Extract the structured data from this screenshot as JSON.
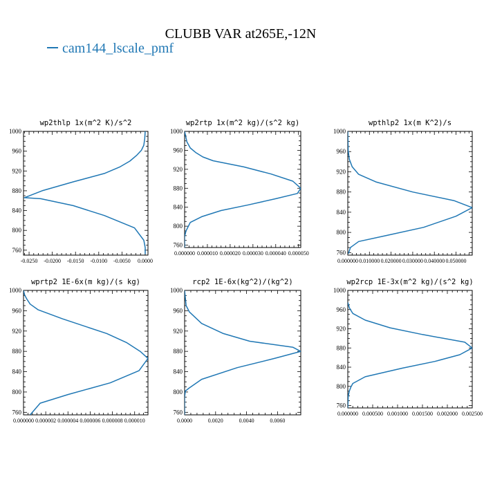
{
  "figure": {
    "title": "CLUBB VAR at265E,-12N",
    "legend": [
      {
        "label": "cam144_lscale_pmf",
        "color": "#1f77b4"
      }
    ],
    "series_color": "#1f77b4"
  },
  "chart_data": [
    {
      "type": "line",
      "title": "wp2thlp  1x(m^2 K)/s^2",
      "xlim": [
        -0.0262,
        0.0006
      ],
      "ylim": [
        1000,
        750
      ],
      "yticks": [
        760,
        800,
        840,
        880,
        920,
        960,
        1000
      ],
      "xticks": [
        -0.025,
        -0.02,
        -0.015,
        -0.01,
        -0.005,
        0.0
      ],
      "xtick_labels": [
        "-0.0250",
        "-0.0200",
        "-0.0150",
        "-0.0100",
        "-0.0050",
        "0.0000"
      ],
      "x": [
        0.0,
        0.0,
        -0.0003,
        -0.0023,
        -0.0088,
        -0.0155,
        -0.0225,
        -0.026,
        -0.0222,
        -0.0155,
        -0.0088,
        -0.0055,
        -0.0033,
        -0.0018,
        -0.0008,
        -0.0003,
        -0.0001,
        0.0
      ],
      "y": [
        752,
        765,
        780,
        805,
        830,
        850,
        864,
        866,
        880,
        898,
        915,
        928,
        940,
        952,
        962,
        972,
        985,
        1000
      ]
    },
    {
      "type": "line",
      "title": "wp2rtp  1x(m^2 kg)/(s^2 kg)",
      "xlim": [
        0,
        5.1e-05
      ],
      "ylim": [
        1000,
        755
      ],
      "yticks": [
        760,
        800,
        840,
        880,
        920,
        960,
        1000
      ],
      "xticks": [
        0,
        1e-05,
        2e-05,
        3e-05,
        4e-05,
        5e-05
      ],
      "xtick_labels": [
        "0.000000",
        "0.000010",
        "0.000020",
        "0.000030",
        "0.000040",
        "0.000050"
      ],
      "x": [
        0.0,
        0.0,
        0.0,
        6e-07,
        2.5e-06,
        7.5e-06,
        1.6e-05,
        2.8e-05,
        4e-05,
        4.95e-05,
        5.1e-05,
        4.75e-05,
        3.8e-05,
        2.6e-05,
        1.25e-05,
        8e-06,
        5e-06,
        2.5e-06,
        1e-06,
        0.0
      ],
      "y": [
        755,
        765,
        778,
        790,
        808,
        820,
        833,
        845,
        858,
        869,
        880,
        895,
        910,
        925,
        938,
        946,
        955,
        965,
        978,
        1000
      ]
    },
    {
      "type": "line",
      "title": "wpthlp2  1x(m K^2)/s",
      "xlim": [
        0,
        0.0575
      ],
      "ylim": [
        1000,
        755
      ],
      "yticks": [
        760,
        800,
        840,
        880,
        920,
        960,
        1000
      ],
      "xticks": [
        0,
        0.01,
        0.02,
        0.03,
        0.04,
        0.05
      ],
      "xtick_labels": [
        "0.000000",
        "0.010000",
        "0.020000",
        "0.030000",
        "0.040000",
        "0.050000"
      ],
      "x": [
        0.0003,
        0.0012,
        0.005,
        0.018,
        0.035,
        0.05,
        0.0575,
        0.049,
        0.03,
        0.013,
        0.005,
        0.002,
        0.0007,
        0.0002,
        0.0
      ],
      "y": [
        758,
        770,
        782,
        794,
        810,
        832,
        849,
        863,
        880,
        900,
        915,
        930,
        945,
        962,
        1000
      ]
    },
    {
      "type": "line",
      "title": "wprtp2  1E-6x(m kg)/(s kg)",
      "xlim": [
        0,
        1.12e-05
      ],
      "ylim": [
        1000,
        755
      ],
      "yticks": [
        760,
        800,
        840,
        880,
        920,
        960,
        1000
      ],
      "xticks": [
        0,
        2e-06,
        4e-06,
        6e-06,
        8e-06,
        1e-05
      ],
      "xtick_labels": [
        "0.000000",
        "0.000002",
        "0.000004",
        "0.000006",
        "0.000008",
        "0.000010"
      ],
      "x": [
        6e-07,
        1.5e-06,
        4e-06,
        7.8e-06,
        1.04e-05,
        1.12e-05,
        1.05e-05,
        9.3e-06,
        7.5e-06,
        3.5e-06,
        1.3e-06,
        6e-07,
        3e-07,
        1e-07,
        0.0
      ],
      "y": [
        755,
        778,
        795,
        818,
        842,
        866,
        880,
        897,
        915,
        944,
        962,
        973,
        983,
        991,
        1000
      ]
    },
    {
      "type": "line",
      "title": "rcp2  1E-6x(kg^2)/(kg^2)",
      "xlim": [
        0,
        0.0075
      ],
      "ylim": [
        1000,
        755
      ],
      "yticks": [
        760,
        800,
        840,
        880,
        920,
        960,
        1000
      ],
      "xticks": [
        0,
        0.002,
        0.004,
        0.006
      ],
      "xtick_labels": [
        "0.0000",
        "0.0020",
        "0.0040",
        "0.0060"
      ],
      "x": [
        0.0,
        0.0,
        5e-05,
        0.0003,
        0.0011,
        0.0034,
        0.0058,
        0.0075,
        0.007,
        0.0042,
        0.0025,
        0.0011,
        0.0003,
        0.0001,
        0.0
      ],
      "y": [
        755,
        790,
        802,
        808,
        825,
        848,
        866,
        880,
        888,
        900,
        915,
        935,
        958,
        970,
        1000
      ]
    },
    {
      "type": "line",
      "title": "wp2rcp  1E-3x(m^2 kg)/(s^2 kg)",
      "xlim": [
        0,
        0.0025
      ],
      "ylim": [
        1000,
        755
      ],
      "yticks": [
        760,
        800,
        840,
        880,
        920,
        960,
        1000
      ],
      "xticks": [
        0,
        0.0005,
        0.001,
        0.0015,
        0.002,
        0.0025
      ],
      "xtick_labels": [
        "0.000000",
        "0.000500",
        "0.001000",
        "0.001500",
        "0.002000",
        "0.002500"
      ],
      "x": [
        0.0,
        1e-05,
        3e-05,
        6e-05,
        0.0001,
        0.00035,
        0.0011,
        0.00175,
        0.00225,
        0.0025,
        0.00235,
        0.0015,
        0.00085,
        0.00035,
        0.0001,
        3e-05,
        0.0
      ],
      "y": [
        755,
        780,
        790,
        798,
        806,
        820,
        838,
        852,
        866,
        880,
        892,
        908,
        922,
        938,
        952,
        964,
        975
      ]
    }
  ]
}
